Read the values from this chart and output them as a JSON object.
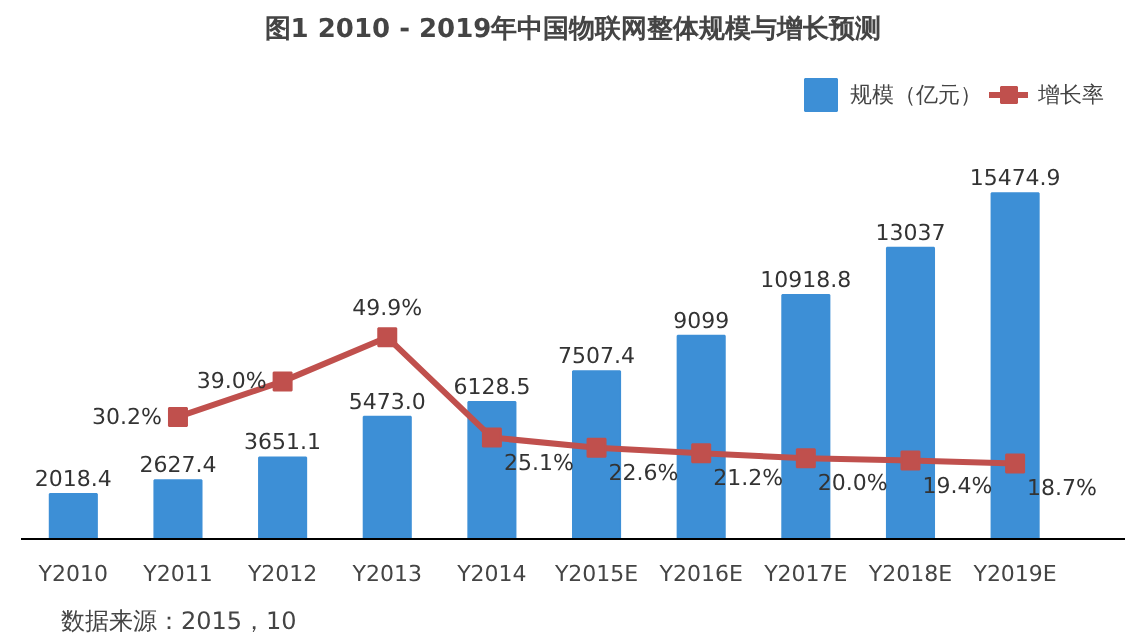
{
  "chart_data": {
    "type": "bar",
    "title": "图1 2010 - 2019年中国物联网整体规模与增长预测",
    "categories": [
      "Y2010",
      "Y2011",
      "Y2012",
      "Y2013",
      "Y2014",
      "Y2015E",
      "Y2016E",
      "Y2017E",
      "Y2018E",
      "Y2019E"
    ],
    "series": [
      {
        "name": "规模（亿元）",
        "color": "#3d8fd6",
        "values": [
          2018.4,
          2627.4,
          3651.1,
          5473.0,
          6128.5,
          7507.4,
          9099,
          10918.8,
          13037,
          15474.9
        ],
        "value_labels": [
          "2018.4",
          "2627.4",
          "3651.1",
          "5473.0",
          "6128.5",
          "7507.4",
          "9099",
          "10918.8",
          "13037",
          "15474.9"
        ]
      },
      {
        "name": "增长率",
        "type": "line",
        "axis": "y2",
        "color": "#c0504d",
        "marker": "square",
        "values": [
          null,
          30.2,
          39.0,
          49.9,
          25.1,
          22.6,
          21.2,
          20.0,
          19.4,
          18.7
        ],
        "value_labels": [
          null,
          "30.2%",
          "39.0%",
          "49.9%",
          "25.1%",
          "22.6%",
          "21.2%",
          "20.0%",
          "19.4%",
          "18.7%"
        ]
      }
    ],
    "tick_labels": "x",
    "grid": false,
    "legend": "top right",
    "annotations": [
      "数据来源：2015，10"
    ]
  }
}
